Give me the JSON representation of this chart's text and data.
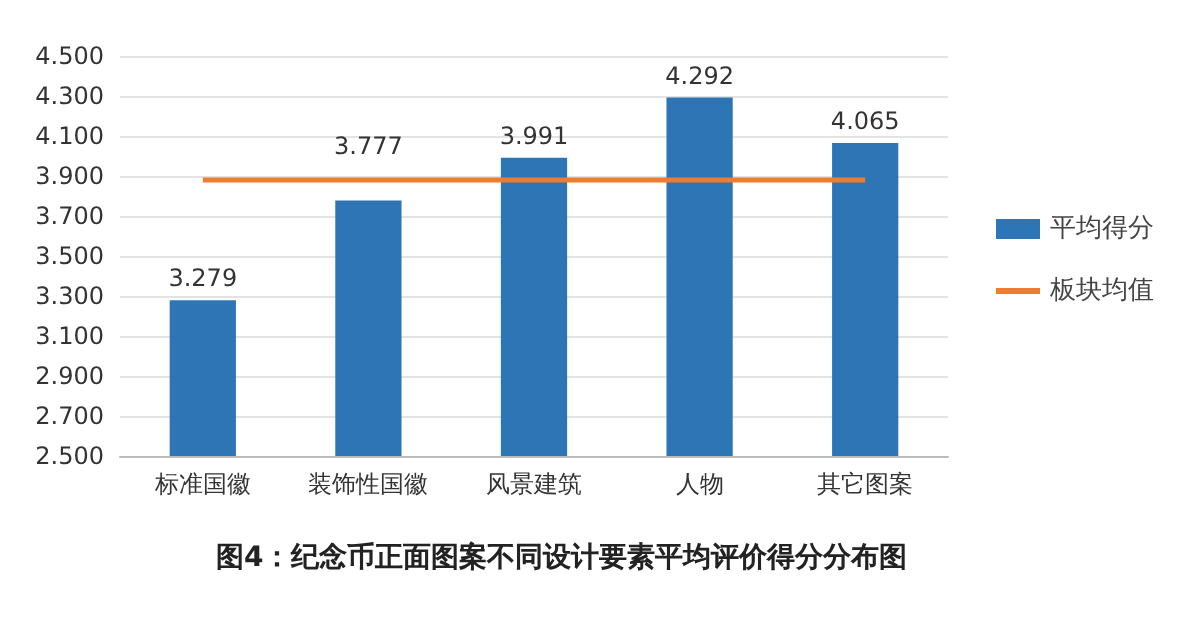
{
  "chart_data": {
    "type": "bar",
    "title": "图4：纪念币正面图案不同设计要素平均评价得分分布图",
    "categories": [
      "标准国徽",
      "装饰性国徽",
      "风景建筑",
      "人物",
      "其它图案"
    ],
    "series": [
      {
        "name": "平均得分",
        "color": "#2e75b6",
        "values": [
          3.279,
          3.777,
          3.991,
          4.292,
          4.065
        ],
        "data_labels": true
      },
      {
        "name": "板块均值",
        "type": "line",
        "color": "#ed7d31",
        "values": [
          3.88,
          3.88,
          3.88,
          3.88,
          3.88
        ],
        "marker": "none"
      }
    ],
    "ylim": [
      2.5,
      4.5
    ],
    "yticks": [
      {
        "value": 2.5,
        "label": "2.500"
      },
      {
        "value": 2.7,
        "label": "2.700"
      },
      {
        "value": 2.9,
        "label": "2.900"
      },
      {
        "value": 3.1,
        "label": "3.100"
      },
      {
        "value": 3.3,
        "label": "3.300"
      },
      {
        "value": 3.5,
        "label": "3.500"
      },
      {
        "value": 3.7,
        "label": "3.700"
      },
      {
        "value": 3.9,
        "label": "3.900"
      },
      {
        "value": 4.1,
        "label": "4.100"
      },
      {
        "value": 4.3,
        "label": "4.300"
      },
      {
        "value": 4.5,
        "label": "4.500"
      }
    ],
    "grid": "y",
    "legend": "right"
  }
}
